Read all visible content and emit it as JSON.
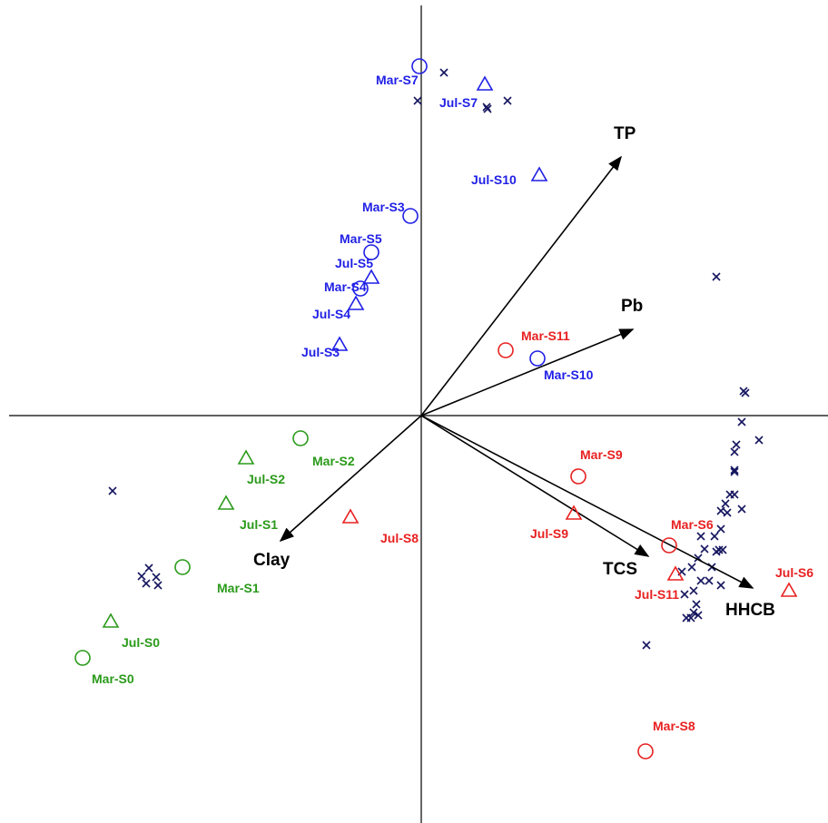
{
  "chart_data": {
    "type": "scatter",
    "title": "",
    "xlabel": "",
    "ylabel": "",
    "xlim": [
      -4.4,
      4.4
    ],
    "ylim": [
      -4.4,
      4.4
    ],
    "grid": false,
    "legend": "none",
    "colors": {
      "blue": "#1f1fe6",
      "red": "#e82020",
      "green": "#2a9a1a",
      "navy": "#15155f",
      "black": "#000000"
    },
    "samples": [
      {
        "label": "Mar-S7",
        "symbol": "circle",
        "color": "blue",
        "x": -0.02,
        "y": 3.85,
        "lx": -0.5,
        "ly": 3.7
      },
      {
        "label": "Jul-S7",
        "symbol": "triangle",
        "color": "blue",
        "x": 0.7,
        "y": 3.65,
        "lx": 0.2,
        "ly": 3.45
      },
      {
        "label": "Jul-S10",
        "symbol": "triangle",
        "color": "blue",
        "x": 1.3,
        "y": 2.65,
        "lx": 0.55,
        "ly": 2.6
      },
      {
        "label": "Mar-S3",
        "symbol": "circle",
        "color": "blue",
        "x": -0.12,
        "y": 2.2,
        "lx": -0.65,
        "ly": 2.3
      },
      {
        "label": "Mar-S5",
        "symbol": "circle",
        "color": "blue",
        "x": -0.55,
        "y": 1.8,
        "lx": -0.9,
        "ly": 1.95
      },
      {
        "label": "Jul-S5",
        "symbol": "triangle",
        "color": "blue",
        "x": -0.55,
        "y": 1.52,
        "lx": -0.95,
        "ly": 1.68
      },
      {
        "label": "Mar-S4",
        "symbol": "circle",
        "color": "blue",
        "x": -0.67,
        "y": 1.4,
        "lx": -1.07,
        "ly": 1.42
      },
      {
        "label": "Jul-S4",
        "symbol": "triangle",
        "color": "blue",
        "x": -0.72,
        "y": 1.23,
        "lx": -1.2,
        "ly": 1.12
      },
      {
        "label": "Jul-S3",
        "symbol": "triangle",
        "color": "blue",
        "x": -0.9,
        "y": 0.78,
        "lx": -1.32,
        "ly": 0.7
      },
      {
        "label": "Mar-S10",
        "symbol": "circle",
        "color": "blue",
        "x": 1.28,
        "y": 0.63,
        "lx": 1.35,
        "ly": 0.45
      },
      {
        "label": "Mar-S11",
        "symbol": "circle",
        "color": "red",
        "x": 0.93,
        "y": 0.72,
        "lx": 1.1,
        "ly": 0.88
      },
      {
        "label": "Mar-S9",
        "symbol": "circle",
        "color": "red",
        "x": 1.73,
        "y": -0.67,
        "lx": 1.75,
        "ly": -0.43
      },
      {
        "label": "Jul-S9",
        "symbol": "triangle",
        "color": "red",
        "x": 1.68,
        "y": -1.08,
        "lx": 1.2,
        "ly": -1.3
      },
      {
        "label": "Mar-S6",
        "symbol": "circle",
        "color": "red",
        "x": 2.73,
        "y": -1.43,
        "lx": 2.75,
        "ly": -1.2
      },
      {
        "label": "Jul-S11",
        "symbol": "triangle",
        "color": "red",
        "x": 2.8,
        "y": -1.75,
        "lx": 2.35,
        "ly": -1.97
      },
      {
        "label": "Jul-S6",
        "symbol": "triangle",
        "color": "red",
        "x": 4.05,
        "y": -1.93,
        "lx": 3.9,
        "ly": -1.73
      },
      {
        "label": "Mar-S8",
        "symbol": "circle",
        "color": "red",
        "x": 2.47,
        "y": -3.7,
        "lx": 2.55,
        "ly": -3.42
      },
      {
        "label": "Jul-S8",
        "symbol": "triangle",
        "color": "red",
        "x": -0.78,
        "y": -1.12,
        "lx": -0.45,
        "ly": -1.35
      },
      {
        "label": "Mar-S2",
        "symbol": "circle",
        "color": "green",
        "x": -1.33,
        "y": -0.25,
        "lx": -1.2,
        "ly": -0.5
      },
      {
        "label": "Jul-S2",
        "symbol": "triangle",
        "color": "green",
        "x": -1.93,
        "y": -0.47,
        "lx": -1.92,
        "ly": -0.7
      },
      {
        "label": "Jul-S1",
        "symbol": "triangle",
        "color": "green",
        "x": -2.15,
        "y": -0.97,
        "lx": -2.0,
        "ly": -1.2
      },
      {
        "label": "Mar-S1",
        "symbol": "circle",
        "color": "green",
        "x": -2.63,
        "y": -1.67,
        "lx": -2.25,
        "ly": -1.9
      },
      {
        "label": "Jul-S0",
        "symbol": "triangle",
        "color": "green",
        "x": -3.42,
        "y": -2.27,
        "lx": -3.3,
        "ly": -2.5
      },
      {
        "label": "Mar-S0",
        "symbol": "circle",
        "color": "green",
        "x": -3.73,
        "y": -2.67,
        "lx": -3.63,
        "ly": -2.9
      }
    ],
    "species": [
      [
        0.25,
        3.78
      ],
      [
        -0.04,
        3.47
      ],
      [
        0.73,
        3.38
      ],
      [
        0.72,
        3.4
      ],
      [
        0.95,
        3.47
      ],
      [
        3.25,
        1.53
      ],
      [
        3.55,
        0.27
      ],
      [
        3.57,
        0.25
      ],
      [
        3.53,
        -0.07
      ],
      [
        3.72,
        -0.27
      ],
      [
        3.47,
        -0.32
      ],
      [
        3.45,
        -0.4
      ],
      [
        3.45,
        -0.6
      ],
      [
        3.45,
        -0.62
      ],
      [
        3.4,
        -0.87
      ],
      [
        3.45,
        -0.87
      ],
      [
        3.35,
        -0.97
      ],
      [
        3.3,
        -1.05
      ],
      [
        3.37,
        -1.07
      ],
      [
        3.53,
        -1.03
      ],
      [
        3.3,
        -1.25
      ],
      [
        3.23,
        -1.33
      ],
      [
        3.08,
        -1.33
      ],
      [
        3.28,
        -1.48
      ],
      [
        3.32,
        -1.48
      ],
      [
        3.25,
        -1.5
      ],
      [
        3.12,
        -1.47
      ],
      [
        2.87,
        -1.72
      ],
      [
        3.05,
        -1.57
      ],
      [
        3.2,
        -1.67
      ],
      [
        2.98,
        -1.67
      ],
      [
        3.08,
        -1.82
      ],
      [
        3.17,
        -1.82
      ],
      [
        3.3,
        -1.87
      ],
      [
        2.9,
        -1.97
      ],
      [
        3.0,
        -1.93
      ],
      [
        3.03,
        -2.08
      ],
      [
        3.0,
        -2.17
      ],
      [
        2.92,
        -2.23
      ],
      [
        3.05,
        -2.2
      ],
      [
        2.97,
        -2.23
      ],
      [
        2.48,
        -2.53
      ],
      [
        -3.4,
        -0.83
      ],
      [
        -3.0,
        -1.68
      ],
      [
        -3.08,
        -1.77
      ],
      [
        -2.92,
        -1.78
      ],
      [
        -3.03,
        -1.85
      ],
      [
        -2.9,
        -1.87
      ]
    ],
    "vectors": [
      {
        "label": "TP",
        "x": 2.2,
        "y": 2.85,
        "lx": 2.12,
        "ly": 3.05
      },
      {
        "label": "Pb",
        "x": 2.33,
        "y": 0.95,
        "lx": 2.2,
        "ly": 1.15
      },
      {
        "label": "TCS",
        "x": 2.5,
        "y": -1.55,
        "lx": 2.0,
        "ly": -1.75
      },
      {
        "label": "HHCB",
        "x": 3.65,
        "y": -1.9,
        "lx": 3.35,
        "ly": -2.2
      },
      {
        "label": "Clay",
        "x": -1.55,
        "y": -1.38,
        "lx": -1.85,
        "ly": -1.65
      }
    ]
  }
}
